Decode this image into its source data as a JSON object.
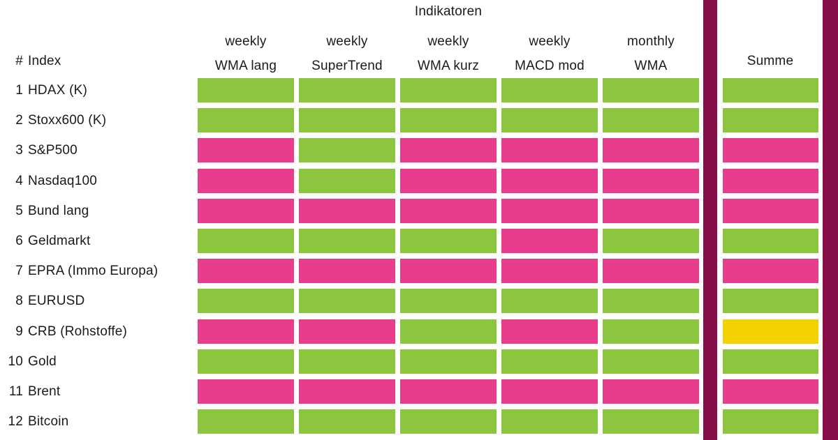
{
  "colors": {
    "green": "#8CC63E",
    "pink": "#E83D8C",
    "yellow": "#F2D200",
    "burgundy": "#870E48",
    "text": "#1A1A1A",
    "background": "#FFFFFF"
  },
  "chart_data": {
    "type": "heatmap",
    "title": "Indikatoren",
    "corner_hash": "#",
    "corner_index": "Index",
    "column_headers": [
      {
        "line1": "weekly",
        "line2": "WMA lang"
      },
      {
        "line1": "weekly",
        "line2": "SuperTrend"
      },
      {
        "line1": "weekly",
        "line2": "WMA kurz"
      },
      {
        "line1": "weekly",
        "line2": "MACD mod"
      },
      {
        "line1": "monthly",
        "line2": "WMA"
      }
    ],
    "summe_header": "Summe",
    "cell_states": [
      "green",
      "pink",
      "yellow"
    ],
    "rows": [
      {
        "num": "1",
        "name": "HDAX (K)",
        "cells": [
          "green",
          "green",
          "green",
          "green",
          "green",
          "green"
        ]
      },
      {
        "num": "2",
        "name": "Stoxx600 (K)",
        "cells": [
          "green",
          "green",
          "green",
          "green",
          "green",
          "green"
        ]
      },
      {
        "num": "3",
        "name": "S&P500",
        "cells": [
          "pink",
          "green",
          "pink",
          "pink",
          "pink",
          "pink"
        ]
      },
      {
        "num": "4",
        "name": "Nasdaq100",
        "cells": [
          "pink",
          "green",
          "pink",
          "pink",
          "pink",
          "pink"
        ]
      },
      {
        "num": "5",
        "name": "Bund lang",
        "cells": [
          "pink",
          "pink",
          "pink",
          "pink",
          "pink",
          "pink"
        ]
      },
      {
        "num": "6",
        "name": "Geldmarkt",
        "cells": [
          "green",
          "green",
          "green",
          "pink",
          "green",
          "green"
        ]
      },
      {
        "num": "7",
        "name": "EPRA (Immo Europa)",
        "cells": [
          "pink",
          "pink",
          "pink",
          "pink",
          "pink",
          "pink"
        ]
      },
      {
        "num": "8",
        "name": "EURUSD",
        "cells": [
          "green",
          "green",
          "green",
          "green",
          "green",
          "green"
        ]
      },
      {
        "num": "9",
        "name": "CRB (Rohstoffe)",
        "cells": [
          "pink",
          "pink",
          "green",
          "pink",
          "green",
          "yellow"
        ]
      },
      {
        "num": "10",
        "name": "Gold",
        "cells": [
          "green",
          "green",
          "green",
          "green",
          "green",
          "green"
        ]
      },
      {
        "num": "11",
        "name": "Brent",
        "cells": [
          "pink",
          "pink",
          "pink",
          "pink",
          "pink",
          "pink"
        ]
      },
      {
        "num": "12",
        "name": "Bitcoin",
        "cells": [
          "green",
          "green",
          "green",
          "green",
          "green",
          "green"
        ]
      }
    ]
  }
}
